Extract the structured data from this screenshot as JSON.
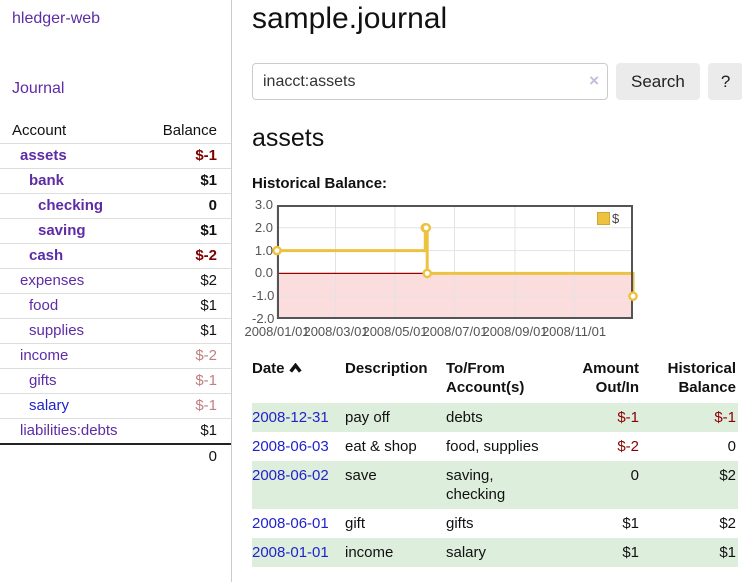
{
  "app": {
    "title": "hledger-web"
  },
  "sidebar": {
    "journal_link": "Journal",
    "header": {
      "account": "Account",
      "balance": "Balance"
    },
    "accounts": [
      {
        "name": "assets",
        "balance": "$-1",
        "indent": 0,
        "bold": true,
        "name_style": "purple",
        "balance_style": "neg-strong"
      },
      {
        "name": "bank",
        "balance": "$1",
        "indent": 1,
        "bold": true,
        "name_style": "purple",
        "balance_style": "normal"
      },
      {
        "name": "checking",
        "balance": "0",
        "indent": 2,
        "bold": true,
        "name_style": "purple",
        "balance_style": "normal"
      },
      {
        "name": "saving",
        "balance": "$1",
        "indent": 2,
        "bold": true,
        "name_style": "purple",
        "balance_style": "normal"
      },
      {
        "name": "cash",
        "balance": "$-2",
        "indent": 1,
        "bold": true,
        "name_style": "purple",
        "balance_style": "neg-strong"
      },
      {
        "name": "expenses",
        "balance": "$2",
        "indent": 0,
        "bold": false,
        "name_style": "purple",
        "balance_style": "normal"
      },
      {
        "name": "food",
        "balance": "$1",
        "indent": 1,
        "bold": false,
        "name_style": "purple",
        "balance_style": "normal"
      },
      {
        "name": "supplies",
        "balance": "$1",
        "indent": 1,
        "bold": false,
        "name_style": "purple",
        "balance_style": "normal"
      },
      {
        "name": "income",
        "balance": "$-2",
        "indent": 0,
        "bold": false,
        "name_style": "purple",
        "balance_style": "neg-soft"
      },
      {
        "name": "gifts",
        "balance": "$-1",
        "indent": 1,
        "bold": false,
        "name_style": "purple",
        "balance_style": "neg-soft"
      },
      {
        "name": "salary",
        "balance": "$-1",
        "indent": 1,
        "bold": false,
        "name_style": "blue",
        "balance_style": "neg-soft"
      },
      {
        "name": "liabilities:debts",
        "balance": "$1",
        "indent": 0,
        "bold": false,
        "name_style": "purple",
        "balance_style": "normal"
      }
    ],
    "total": "0"
  },
  "main": {
    "title": "sample.journal",
    "search": {
      "value": "inacct:assets",
      "clear_icon": "×",
      "button_label": "Search",
      "help_label": "?"
    },
    "account_heading": "assets",
    "chart_label": "Historical Balance:"
  },
  "chart_data": {
    "type": "line",
    "title": "Historical Balance:",
    "steps": true,
    "series": [
      {
        "name": "$",
        "color": "#edc240",
        "points": [
          [
            "2008-01-01",
            1
          ],
          [
            "2008-06-01",
            2
          ],
          [
            "2008-06-02",
            2
          ],
          [
            "2008-06-03",
            0
          ],
          [
            "2008-12-31",
            -1
          ]
        ]
      }
    ],
    "xlim": [
      "2008-01-01",
      "2008-12-31"
    ],
    "ylim": [
      -2,
      3
    ],
    "y_tick_values": [
      3,
      2,
      1,
      0,
      -1,
      -2
    ],
    "y_tick_labels": [
      "3.0",
      "2.0",
      "1.0",
      "0.0",
      "-1.0",
      "-2.0"
    ],
    "x_tick_dates": [
      "2008-01-01",
      "2008-03-01",
      "2008-05-01",
      "2008-07-01",
      "2008-09-01",
      "2008-11-01"
    ],
    "x_tick_labels": [
      "2008/01/01",
      "2008/03/01",
      "2008/05/01",
      "2008/07/01",
      "2008/09/01",
      "2008/11/01"
    ],
    "legend": {
      "position": "top-right",
      "label": "$"
    },
    "grid": true,
    "colors": {
      "line": "#edc240",
      "negative_fill": "#fbdddd",
      "zero_line": "#990000",
      "gridline": "#e3e3e3",
      "border": "#545454"
    }
  },
  "register": {
    "headers": [
      "Date",
      "Description",
      "To/From Account(s)",
      "Amount Out/In",
      "Historical Balance"
    ],
    "rows": [
      {
        "date": "2008-12-31",
        "description": "pay off",
        "accounts": "debts",
        "amount": "$-1",
        "amount_negative": true,
        "balance": "$-1",
        "balance_negative": true,
        "shaded": true
      },
      {
        "date": "2008-06-03",
        "description": "eat & shop",
        "accounts": "food, supplies",
        "amount": "$-2",
        "amount_negative": true,
        "balance": "0",
        "balance_negative": false,
        "shaded": false
      },
      {
        "date": "2008-06-02",
        "description": "save",
        "accounts": "saving, checking",
        "amount": "0",
        "amount_negative": false,
        "balance": "$2",
        "balance_negative": false,
        "shaded": true
      },
      {
        "date": "2008-06-01",
        "description": "gift",
        "accounts": "gifts",
        "amount": "$1",
        "amount_negative": false,
        "balance": "$2",
        "balance_negative": false,
        "shaded": false
      },
      {
        "date": "2008-01-01",
        "description": "income",
        "accounts": "salary",
        "amount": "$1",
        "amount_negative": false,
        "balance": "$1",
        "balance_negative": false,
        "shaded": true
      }
    ]
  }
}
